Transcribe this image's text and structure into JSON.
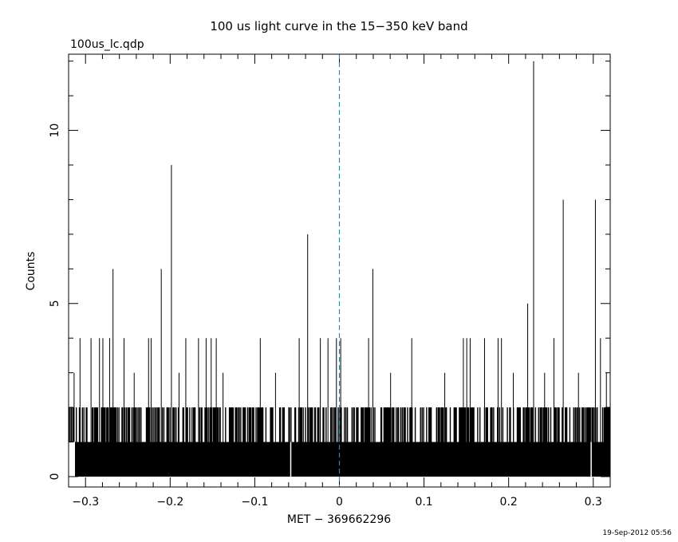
{
  "chart_data": {
    "type": "bar",
    "style": "histogram-step",
    "title": "100 us light curve in the 15−350 keV band",
    "file_label": "100us_lc.qdp",
    "xlabel": "MET − 369662296",
    "ylabel": "Counts",
    "xlim": [
      -0.32,
      0.32
    ],
    "ylim": [
      -0.3,
      12.2
    ],
    "x_ticks": [
      -0.3,
      -0.2,
      -0.1,
      0,
      0.1,
      0.2,
      0.3
    ],
    "x_tick_labels": [
      "−0.3",
      "−0.2",
      "−0.1",
      "0",
      "0.1",
      "0.2",
      "0.3"
    ],
    "y_ticks": [
      0,
      5,
      10
    ],
    "y_tick_labels": [
      "0",
      "5",
      "10"
    ],
    "bin_width": 0.0001,
    "baseline_counts": 1,
    "reference_line": {
      "x": 0,
      "color": "#1f8fa8",
      "style": "dashed"
    },
    "peaks": [
      {
        "x": -0.3135,
        "y": 3
      },
      {
        "x": -0.3065,
        "y": 4
      },
      {
        "x": -0.2935,
        "y": 4
      },
      {
        "x": -0.2835,
        "y": 4
      },
      {
        "x": -0.2795,
        "y": 4
      },
      {
        "x": -0.2715,
        "y": 4
      },
      {
        "x": -0.2675,
        "y": 6
      },
      {
        "x": -0.2545,
        "y": 4
      },
      {
        "x": -0.2425,
        "y": 3
      },
      {
        "x": -0.2255,
        "y": 4
      },
      {
        "x": -0.2225,
        "y": 4
      },
      {
        "x": -0.2105,
        "y": 6
      },
      {
        "x": -0.1985,
        "y": 9
      },
      {
        "x": -0.1895,
        "y": 3
      },
      {
        "x": -0.1815,
        "y": 4
      },
      {
        "x": -0.1665,
        "y": 4
      },
      {
        "x": -0.1575,
        "y": 4
      },
      {
        "x": -0.1515,
        "y": 4
      },
      {
        "x": -0.1455,
        "y": 4
      },
      {
        "x": -0.1375,
        "y": 3
      },
      {
        "x": -0.0935,
        "y": 4
      },
      {
        "x": -0.0755,
        "y": 3
      },
      {
        "x": -0.0475,
        "y": 4
      },
      {
        "x": -0.0375,
        "y": 7
      },
      {
        "x": -0.0225,
        "y": 4
      },
      {
        "x": -0.0135,
        "y": 4
      },
      {
        "x": -0.0035,
        "y": 4
      },
      {
        "x": 0.0015,
        "y": 4
      },
      {
        "x": 0.0345,
        "y": 4
      },
      {
        "x": 0.0395,
        "y": 6
      },
      {
        "x": 0.0605,
        "y": 3
      },
      {
        "x": 0.0855,
        "y": 4
      },
      {
        "x": 0.1245,
        "y": 3
      },
      {
        "x": 0.1465,
        "y": 4
      },
      {
        "x": 0.1505,
        "y": 4
      },
      {
        "x": 0.1545,
        "y": 4
      },
      {
        "x": 0.1715,
        "y": 4
      },
      {
        "x": 0.1875,
        "y": 4
      },
      {
        "x": 0.1915,
        "y": 4
      },
      {
        "x": 0.2055,
        "y": 3
      },
      {
        "x": 0.2225,
        "y": 5
      },
      {
        "x": 0.2295,
        "y": 12
      },
      {
        "x": 0.2425,
        "y": 3
      },
      {
        "x": 0.2535,
        "y": 4
      },
      {
        "x": 0.2645,
        "y": 8
      },
      {
        "x": 0.2825,
        "y": 3
      },
      {
        "x": 0.3025,
        "y": 8
      },
      {
        "x": 0.3085,
        "y": 4
      },
      {
        "x": 0.3155,
        "y": 3
      }
    ],
    "zero_bins": [
      -0.0575,
      0.2975
    ]
  },
  "footer": {
    "timestamp": "19-Sep-2012 05:56"
  }
}
